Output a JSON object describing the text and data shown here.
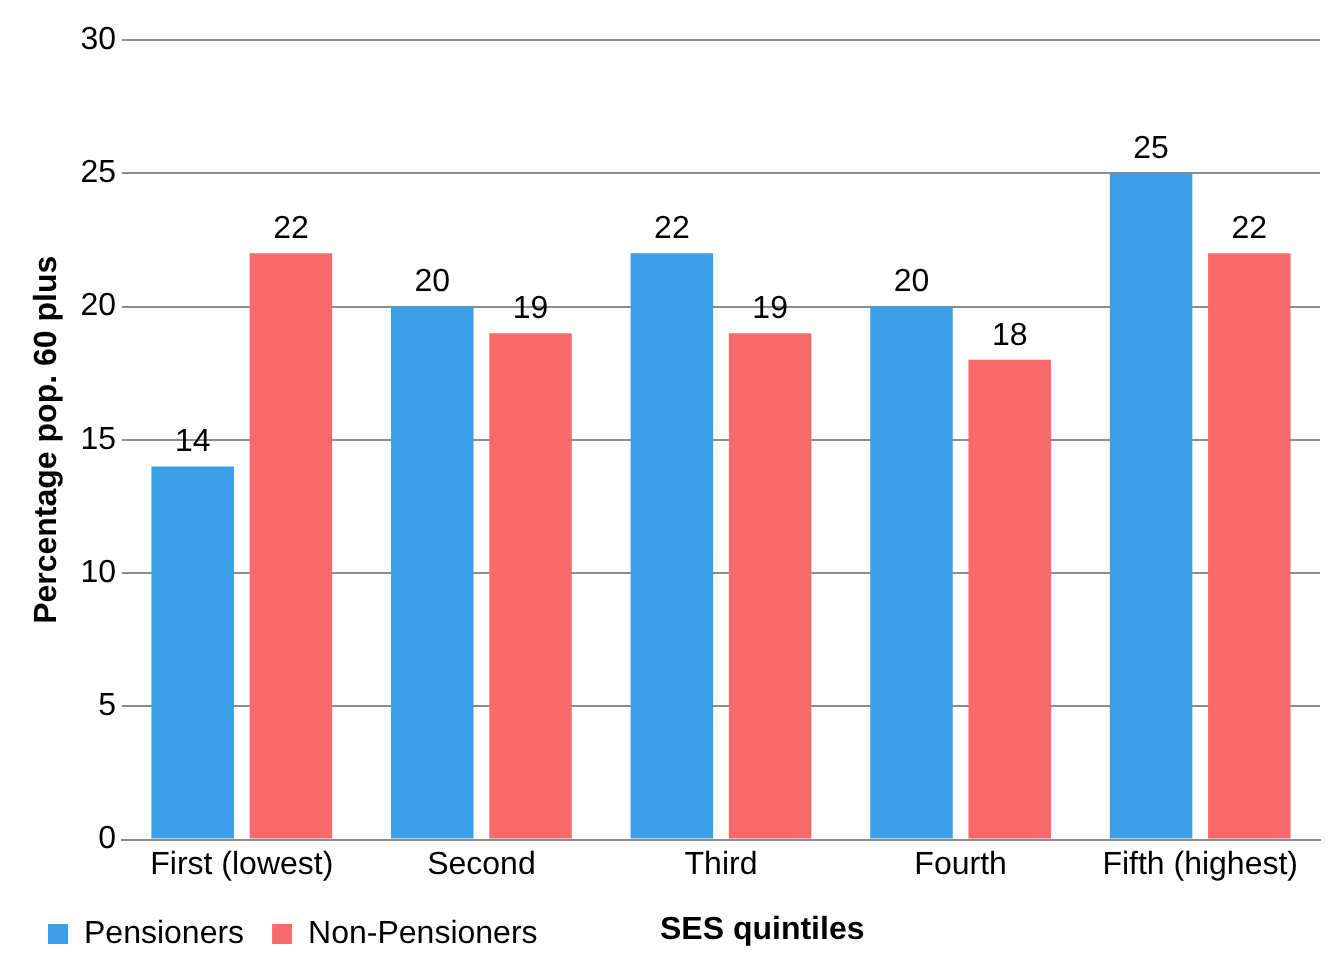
{
  "chart_data": {
    "type": "bar",
    "ylabel": "Percentage pop. 60 plus",
    "xlabel": "SES quintiles",
    "categories": [
      "First (lowest)",
      "Second",
      "Third",
      "Fourth",
      "Fifth (highest)"
    ],
    "series": [
      {
        "name": "Pensioners",
        "color": "#3b9fe8",
        "values": [
          14,
          20,
          22,
          20,
          25
        ]
      },
      {
        "name": "Non-Pensioners",
        "color": "#f96a6a",
        "values": [
          22,
          19,
          19,
          18,
          22
        ]
      }
    ],
    "ylim": [
      0,
      30
    ],
    "yticks": [
      0,
      5,
      10,
      15,
      20,
      25,
      30
    ],
    "grid": "y",
    "legend": "bottom left",
    "data_labels": true
  }
}
